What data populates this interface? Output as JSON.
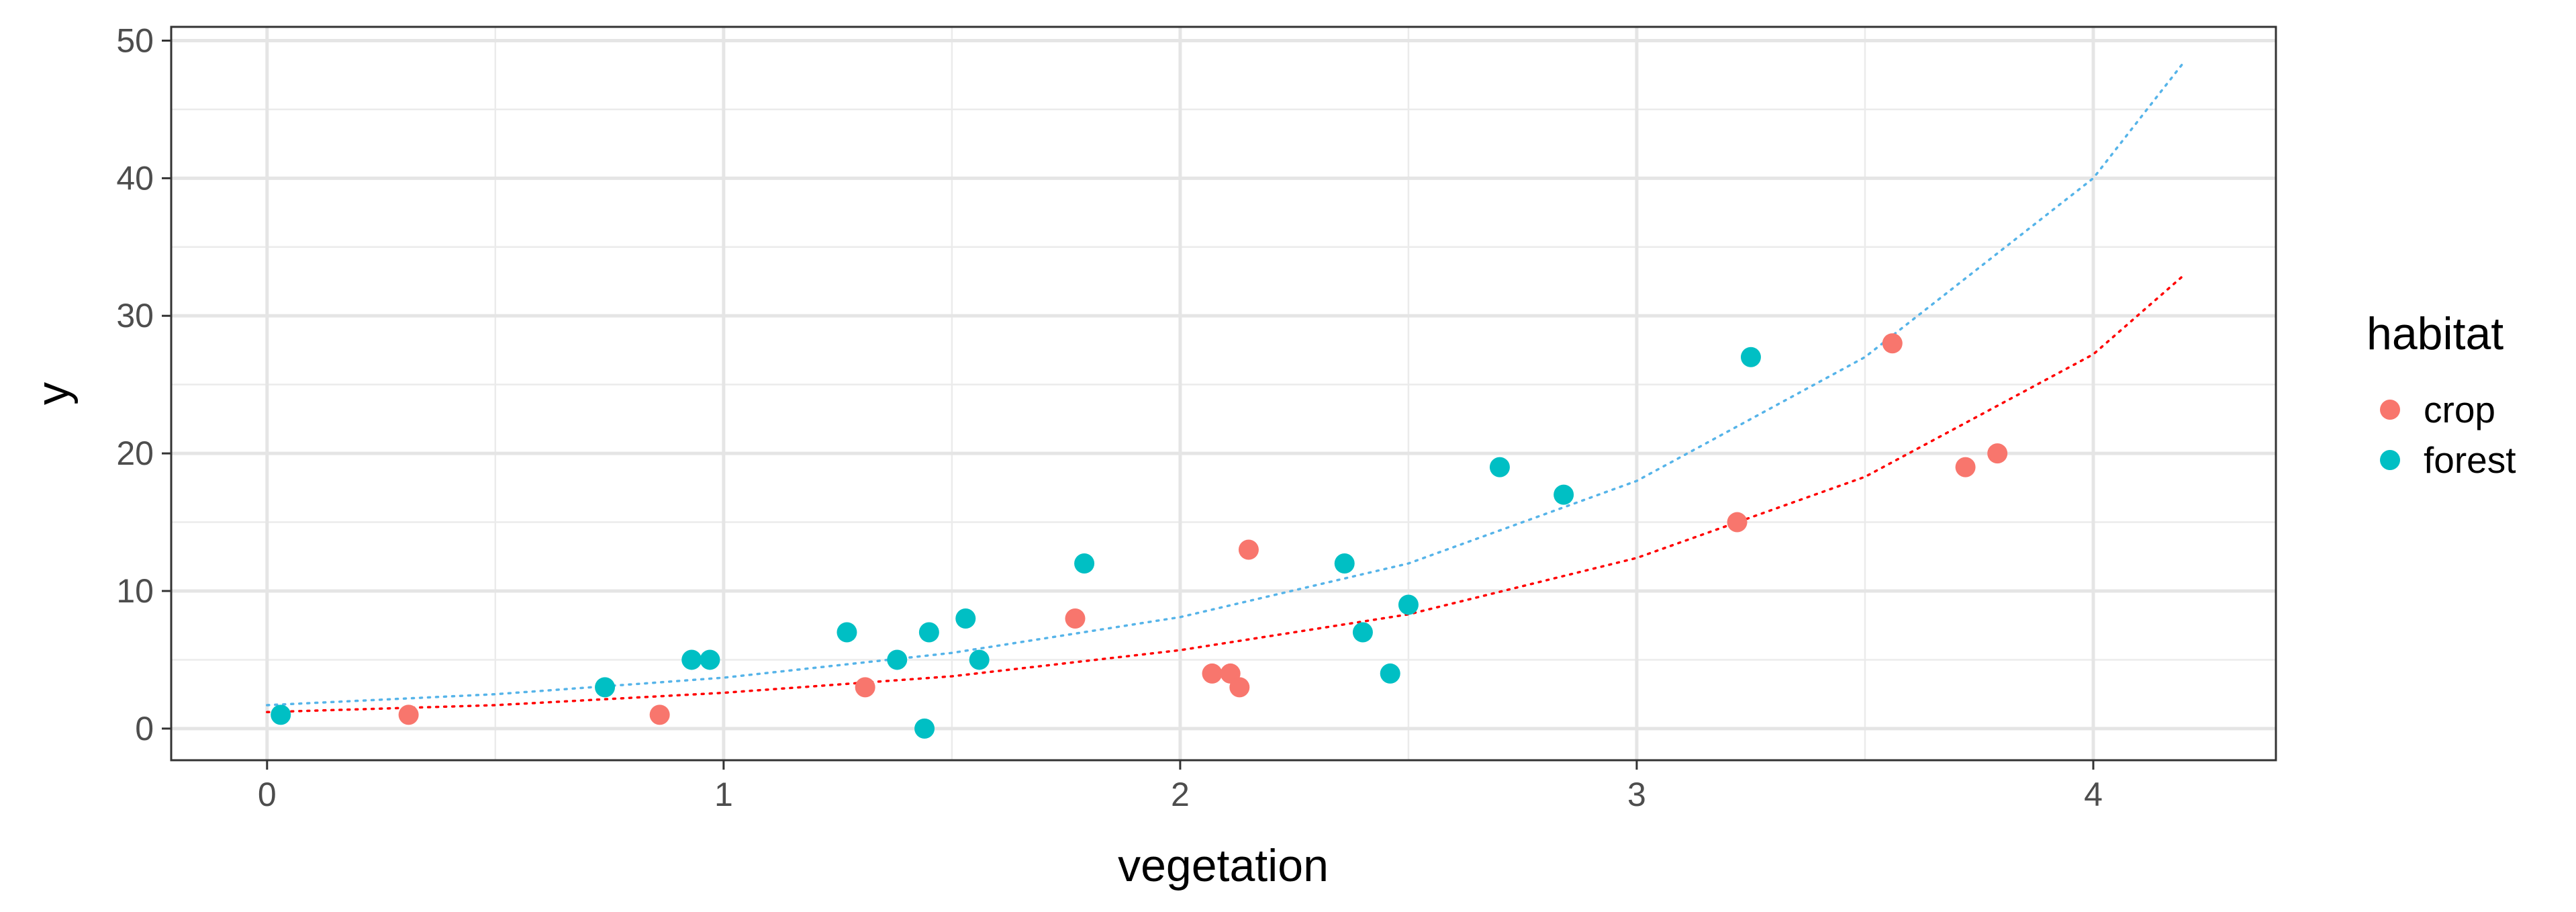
{
  "chart_data": {
    "type": "scatter",
    "title": "",
    "xlabel": "vegetation",
    "ylabel": "y",
    "xlim": [
      -0.21,
      4.4
    ],
    "ylim": [
      -2.3,
      51
    ],
    "x_ticks": [
      0,
      1,
      2,
      3,
      4
    ],
    "y_ticks": [
      0,
      10,
      20,
      30,
      40,
      50
    ],
    "x_tick_labels": [
      "0",
      "1",
      "2",
      "3",
      "4"
    ],
    "y_tick_labels": [
      "0",
      "10",
      "20",
      "30",
      "40",
      "50"
    ],
    "grid": true,
    "legend": {
      "title": "habitat",
      "placement": "right",
      "entries": [
        "crop",
        "forest"
      ]
    },
    "series": [
      {
        "name": "crop",
        "color": "#F8766D",
        "points": [
          {
            "x": 0.31,
            "y": 1
          },
          {
            "x": 0.86,
            "y": 1
          },
          {
            "x": 1.31,
            "y": 3
          },
          {
            "x": 1.77,
            "y": 8
          },
          {
            "x": 2.07,
            "y": 4
          },
          {
            "x": 2.11,
            "y": 4
          },
          {
            "x": 2.13,
            "y": 3
          },
          {
            "x": 2.15,
            "y": 13
          },
          {
            "x": 3.22,
            "y": 15
          },
          {
            "x": 3.56,
            "y": 28
          },
          {
            "x": 3.72,
            "y": 19
          },
          {
            "x": 3.79,
            "y": 20
          }
        ],
        "fit": {
          "style": "dotted",
          "color": "#ff0000",
          "x": [
            0,
            0.5,
            1,
            1.5,
            2,
            2.5,
            3,
            3.5,
            4,
            4.2
          ],
          "y": [
            1.2,
            1.7,
            2.6,
            3.8,
            5.7,
            8.3,
            12.4,
            18.3,
            27.2,
            33
          ]
        }
      },
      {
        "name": "forest",
        "color": "#00BFC4",
        "points": [
          {
            "x": 0.03,
            "y": 1
          },
          {
            "x": 0.74,
            "y": 3
          },
          {
            "x": 0.93,
            "y": 5
          },
          {
            "x": 0.97,
            "y": 5
          },
          {
            "x": 1.27,
            "y": 7
          },
          {
            "x": 1.38,
            "y": 5
          },
          {
            "x": 1.44,
            "y": 0
          },
          {
            "x": 1.45,
            "y": 7
          },
          {
            "x": 1.53,
            "y": 8
          },
          {
            "x": 1.56,
            "y": 5
          },
          {
            "x": 1.79,
            "y": 12
          },
          {
            "x": 2.36,
            "y": 12
          },
          {
            "x": 2.4,
            "y": 7
          },
          {
            "x": 2.46,
            "y": 4
          },
          {
            "x": 2.5,
            "y": 9
          },
          {
            "x": 2.7,
            "y": 19
          },
          {
            "x": 2.84,
            "y": 17
          },
          {
            "x": 3.25,
            "y": 27
          }
        ],
        "fit": {
          "style": "dotted",
          "color": "#56B4E9",
          "x": [
            0,
            0.5,
            1,
            1.5,
            2,
            2.5,
            3,
            3.5,
            4,
            4.2
          ],
          "y": [
            1.7,
            2.5,
            3.7,
            5.5,
            8.1,
            12,
            18,
            27,
            40,
            48.5
          ]
        }
      }
    ]
  }
}
